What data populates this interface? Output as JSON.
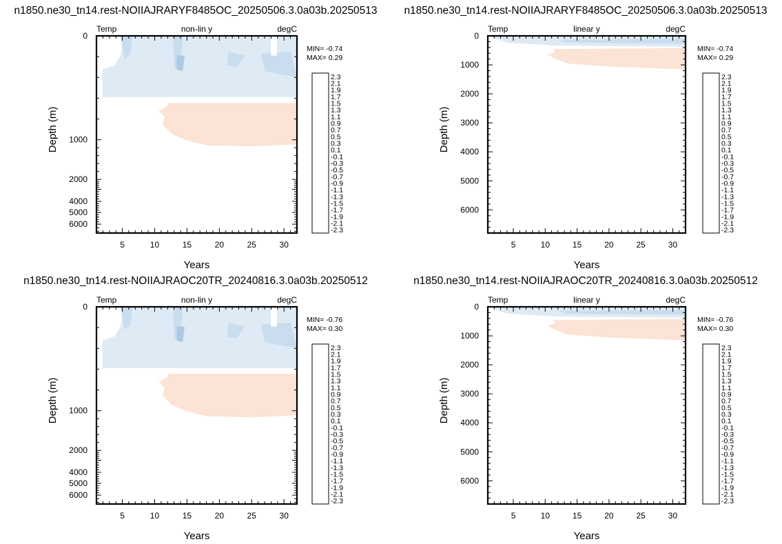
{
  "figure": {
    "colorbar_levels": [
      "2.3",
      "2.1",
      "1.9",
      "1.7",
      "1.5",
      "1.3",
      "1.1",
      "0.9",
      "0.7",
      "0.5",
      "0.3",
      "0.1",
      "-0.1",
      "-0.3",
      "-0.5",
      "-0.7",
      "-0.9",
      "-1.1",
      "-1.3",
      "-1.5",
      "-1.7",
      "-1.9",
      "-2.1",
      "-2.3"
    ],
    "colorbar_colors": [
      "#67001f",
      "#890a2a",
      "#a81c2f",
      "#bd3940",
      "#cc5352",
      "#d86c5e",
      "#e4876f",
      "#efa283",
      "#f5bb9f",
      "#f9d0b9",
      "#fce3d3",
      "#fff4ec",
      "#f0f6fb",
      "#deebf5",
      "#c8ddee",
      "#aecfe5",
      "#8fbedb",
      "#6ca6cf",
      "#4e8fc2",
      "#3678b5",
      "#2463a2",
      "#18508c",
      "#103e73",
      "#0a2d59"
    ],
    "fill_colors": {
      "neg_light": "#dfebf4",
      "neg_mid": "#c9ddee",
      "neg_dark": "#acc9e3",
      "pos_light": "#fbe3d5"
    }
  },
  "chart_data": [
    {
      "type": "contour",
      "title": "n1850.ne30_tn14.rest-NOIIAJRARYF8485OC_20250506.3.0a03b.20250513",
      "left_label": "Temp",
      "center_label": "non-lin y",
      "right_label": "degC",
      "xlabel": "Years",
      "ylabel": "Depth (m)",
      "xlim": [
        1,
        32
      ],
      "xticks": [
        "5",
        "10",
        "15",
        "20",
        "25",
        "30"
      ],
      "yscale": "non-linear",
      "ylim": [
        0,
        6500
      ],
      "yticks": [
        "0",
        "1000",
        "2000",
        "3000",
        "4000",
        "5000",
        "6000"
      ],
      "yticks_shown": [
        "0",
        "1000",
        "2000",
        "4000",
        "5000",
        "6000"
      ],
      "min_text": "MIN= -0.74",
      "max_text": "MAX=  0.29"
    },
    {
      "type": "contour",
      "title": "n1850.ne30_tn14.rest-NOIIAJRARYF8485OC_20250506.3.0a03b.20250513",
      "left_label": "Temp",
      "center_label": "linear y",
      "right_label": "degC",
      "xlabel": "Years",
      "ylabel": "Depth (m)",
      "xlim": [
        1,
        32
      ],
      "xticks": [
        "5",
        "10",
        "15",
        "20",
        "25",
        "30"
      ],
      "yscale": "linear",
      "ylim": [
        0,
        6800
      ],
      "yticks": [
        "0",
        "1000",
        "2000",
        "3000",
        "4000",
        "5000",
        "6000"
      ],
      "min_text": "MIN= -0.74",
      "max_text": "MAX=  0.29"
    },
    {
      "type": "contour",
      "title": "n1850.ne30_tn14.rest-NOIIAJRAOC20TR_20240816.3.0a03b.20250512",
      "left_label": "Temp",
      "center_label": "non-lin y",
      "right_label": "degC",
      "xlabel": "Years",
      "ylabel": "Depth (m)",
      "xlim": [
        1,
        32
      ],
      "xticks": [
        "5",
        "10",
        "15",
        "20",
        "25",
        "30"
      ],
      "yscale": "non-linear",
      "ylim": [
        0,
        6500
      ],
      "yticks": [
        "0",
        "1000",
        "2000",
        "3000",
        "4000",
        "5000",
        "6000"
      ],
      "yticks_shown": [
        "0",
        "1000",
        "2000",
        "4000",
        "5000",
        "6000"
      ],
      "min_text": "MIN= -0.76",
      "max_text": "MAX=  0.30"
    },
    {
      "type": "contour",
      "title": "n1850.ne30_tn14.rest-NOIIAJRAOC20TR_20240816.3.0a03b.20250512",
      "left_label": "Temp",
      "center_label": "linear y",
      "right_label": "degC",
      "xlabel": "Years",
      "ylabel": "Depth (m)",
      "xlim": [
        1,
        32
      ],
      "xticks": [
        "5",
        "10",
        "15",
        "20",
        "25",
        "30"
      ],
      "yscale": "linear",
      "ylim": [
        0,
        6800
      ],
      "yticks": [
        "0",
        "1000",
        "2000",
        "3000",
        "4000",
        "5000",
        "6000"
      ],
      "min_text": "MIN= -0.76",
      "max_text": "MAX=  0.30"
    }
  ]
}
